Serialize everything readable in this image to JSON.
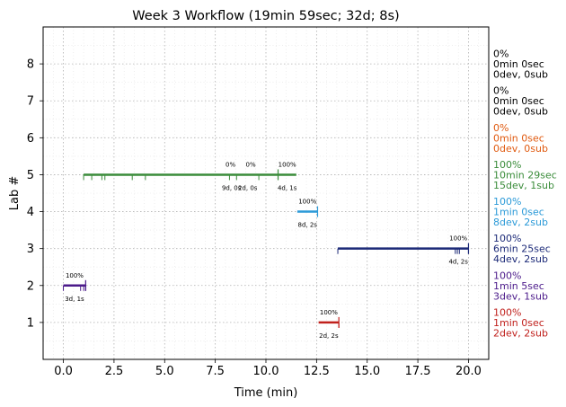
{
  "chart_data": {
    "type": "timeline",
    "title": "Week 3 Workflow (19min 59sec; 32d; 8s)",
    "xlabel": "Time (min)",
    "ylabel": "Lab #",
    "xlim": [
      -1,
      21
    ],
    "ylim": [
      9,
      0
    ],
    "xticks": [
      0,
      2.5,
      5,
      7.5,
      10,
      12.5,
      15,
      17.5,
      20
    ],
    "xtick_labels": [
      "0.0",
      "2.5",
      "5.0",
      "7.5",
      "10.0",
      "12.5",
      "15.0",
      "17.5",
      "20.0"
    ],
    "yticks": [
      1,
      2,
      3,
      4,
      5,
      6,
      7,
      8
    ],
    "ytick_labels": [
      "1",
      "2",
      "3",
      "4",
      "5",
      "6",
      "7",
      "8"
    ],
    "grid": true,
    "labs": [
      {
        "lab": 1,
        "color": "#c0201c",
        "start": 12.6,
        "end": 13.6,
        "ticks": [
          13.6
        ],
        "pct_labels": [
          {
            "x": 13.1,
            "text": "100%"
          }
        ],
        "dur_labels": [
          {
            "x": 13.1,
            "text": "2d, 2s"
          }
        ],
        "summary": [
          "100%",
          "1min 0sec",
          "2dev, 2sub"
        ]
      },
      {
        "lab": 2,
        "color": "#4b1a8a",
        "start": 0.0,
        "end": 1.1,
        "ticks": [
          0.0,
          0.85,
          1.0,
          1.1
        ],
        "pct_labels": [
          {
            "x": 0.55,
            "text": "100%"
          }
        ],
        "dur_labels": [
          {
            "x": 0.55,
            "text": "3d, 1s"
          }
        ],
        "summary": [
          "100%",
          "1min 5sec",
          "3dev, 1sub"
        ]
      },
      {
        "lab": 3,
        "color": "#1c2a78",
        "start": 13.55,
        "end": 20.0,
        "ticks": [
          13.55,
          19.35,
          19.45,
          19.55,
          20.0
        ],
        "pct_labels": [
          {
            "x": 19.5,
            "text": "100%"
          }
        ],
        "dur_labels": [
          {
            "x": 19.5,
            "text": "4d, 2s"
          }
        ],
        "summary": [
          "100%",
          "6min 25sec",
          "4dev, 2sub"
        ]
      },
      {
        "lab": 4,
        "color": "#2b9ad8",
        "start": 11.55,
        "end": 12.55,
        "ticks": [
          12.55
        ],
        "pct_labels": [
          {
            "x": 12.05,
            "text": "100%"
          }
        ],
        "dur_labels": [
          {
            "x": 12.05,
            "text": "8d, 2s"
          }
        ],
        "summary": [
          "100%",
          "1min 0sec",
          "8dev, 2sub"
        ]
      },
      {
        "lab": 5,
        "color": "#3a8c3a",
        "start": 1.0,
        "end": 11.5,
        "ticks": [
          1.0,
          1.4,
          1.9,
          2.05,
          3.4,
          4.05,
          8.2,
          8.55,
          9.65,
          10.6
        ],
        "pct_labels": [
          {
            "x": 8.25,
            "text": "0%"
          },
          {
            "x": 9.25,
            "text": "0%"
          },
          {
            "x": 11.05,
            "text": "100%"
          }
        ],
        "dur_labels": [
          {
            "x": 8.3,
            "text": "9d, 0s"
          },
          {
            "x": 9.1,
            "text": "2d, 0s"
          },
          {
            "x": 11.05,
            "text": "4d, 1s"
          }
        ],
        "summary": [
          "100%",
          "10min 29sec",
          "15dev, 1sub"
        ]
      },
      {
        "lab": 6,
        "color": "#e05a10",
        "summary": [
          "0%",
          "0min 0sec",
          "0dev, 0sub"
        ]
      },
      {
        "lab": 7,
        "color": "#000000",
        "summary": [
          "0%",
          "0min 0sec",
          "0dev, 0sub"
        ]
      },
      {
        "lab": 8,
        "color": "#000000",
        "summary": [
          "0%",
          "0min 0sec",
          "0dev, 0sub"
        ]
      }
    ]
  }
}
